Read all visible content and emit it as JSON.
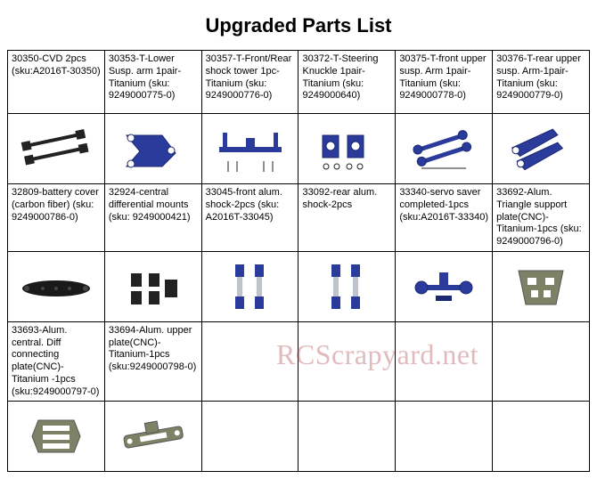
{
  "title": "Upgraded Parts List",
  "watermark": "RCScrapyard.net",
  "table": {
    "columns": 6,
    "rowPairs": 3,
    "cells": [
      [
        {
          "label": "30350-CVD 2pcs (sku:A2016T-30350)",
          "icon": "cvd-shafts"
        },
        {
          "label": "30353-T-Lower Susp. arm 1pair-Titanium (sku: 9249000775-0)",
          "icon": "lower-susp-arm"
        },
        {
          "label": "30357-T-Front/Rear shock tower 1pc-Titanium (sku: 9249000776-0)",
          "icon": "shock-tower"
        },
        {
          "label": "30372-T-Steering Knuckle 1pair-Titanium (sku: 9249000640)",
          "icon": "steering-knuckle"
        },
        {
          "label": "30375-T-front upper susp. Arm 1pair-Titanium (sku: 9249000778-0)",
          "icon": "front-upper-susp"
        },
        {
          "label": "30376-T-rear upper susp. Arm-1pair-Titanium (sku: 9249000779-0)",
          "icon": "rear-upper-susp"
        }
      ],
      [
        {
          "label": "32809-battery cover (carbon fiber) (sku: 9249000786-0)",
          "icon": "battery-cover"
        },
        {
          "label": "32924-central differential mounts (sku: 9249000421)",
          "icon": "diff-mounts"
        },
        {
          "label": "33045-front alum. shock-2pcs (sku: A2016T-33045)",
          "icon": "front-shock"
        },
        {
          "label": "33092-rear alum. shock-2pcs",
          "icon": "rear-shock"
        },
        {
          "label": "33340-servo saver completed-1pcs (sku:A2016T-33340)",
          "icon": "servo-saver"
        },
        {
          "label": "33692-Alum. Triangle support plate(CNC)-Titanium-1pcs (sku: 9249000796-0)",
          "icon": "triangle-plate"
        }
      ],
      [
        {
          "label": "33693-Alum. central. Diff connecting plate(CNC)-Titanium -1pcs (sku:9249000797-0)",
          "icon": "diff-connecting-plate"
        },
        {
          "label": "33694-Alum. upper plate(CNC)-Titanium-1pcs (sku:9249000798-0)",
          "icon": "upper-plate"
        },
        {
          "label": "",
          "icon": ""
        },
        {
          "label": "",
          "icon": ""
        },
        {
          "label": "",
          "icon": ""
        },
        {
          "label": "",
          "icon": ""
        }
      ]
    ],
    "colors": {
      "blue": "#2a3b9c",
      "darkblue": "#1c2870",
      "titanium": "#7d8266",
      "black": "#222222",
      "carbon": "#1a1a1a",
      "silver": "#bfc4cc"
    }
  }
}
